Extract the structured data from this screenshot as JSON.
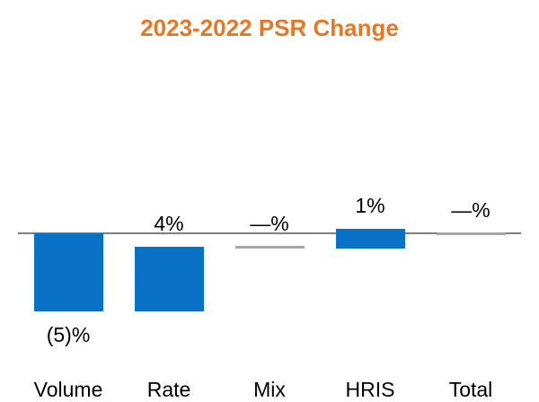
{
  "chart_data": {
    "type": "bar",
    "variant": "waterfall",
    "title": "2023-2022 PSR Change",
    "categories": [
      "Volume",
      "Rate",
      "Mix",
      "HRIS",
      "Total"
    ],
    "values": [
      -5,
      4,
      0,
      1,
      0
    ],
    "value_labels": [
      "(5)%",
      "4%",
      "—%",
      "1%",
      "—%"
    ],
    "unit": "%",
    "xlabel": "",
    "ylabel": "",
    "legend": false,
    "gridlines": false,
    "zero_change_style": "gray dash at cumulative level",
    "colors": {
      "bar": "#0A72C6",
      "title": "#E87724",
      "axis_line": "#7F7F7F",
      "zero_marker": "#A6A6A6",
      "text": "#000000",
      "background": "#FFFFFF"
    }
  }
}
